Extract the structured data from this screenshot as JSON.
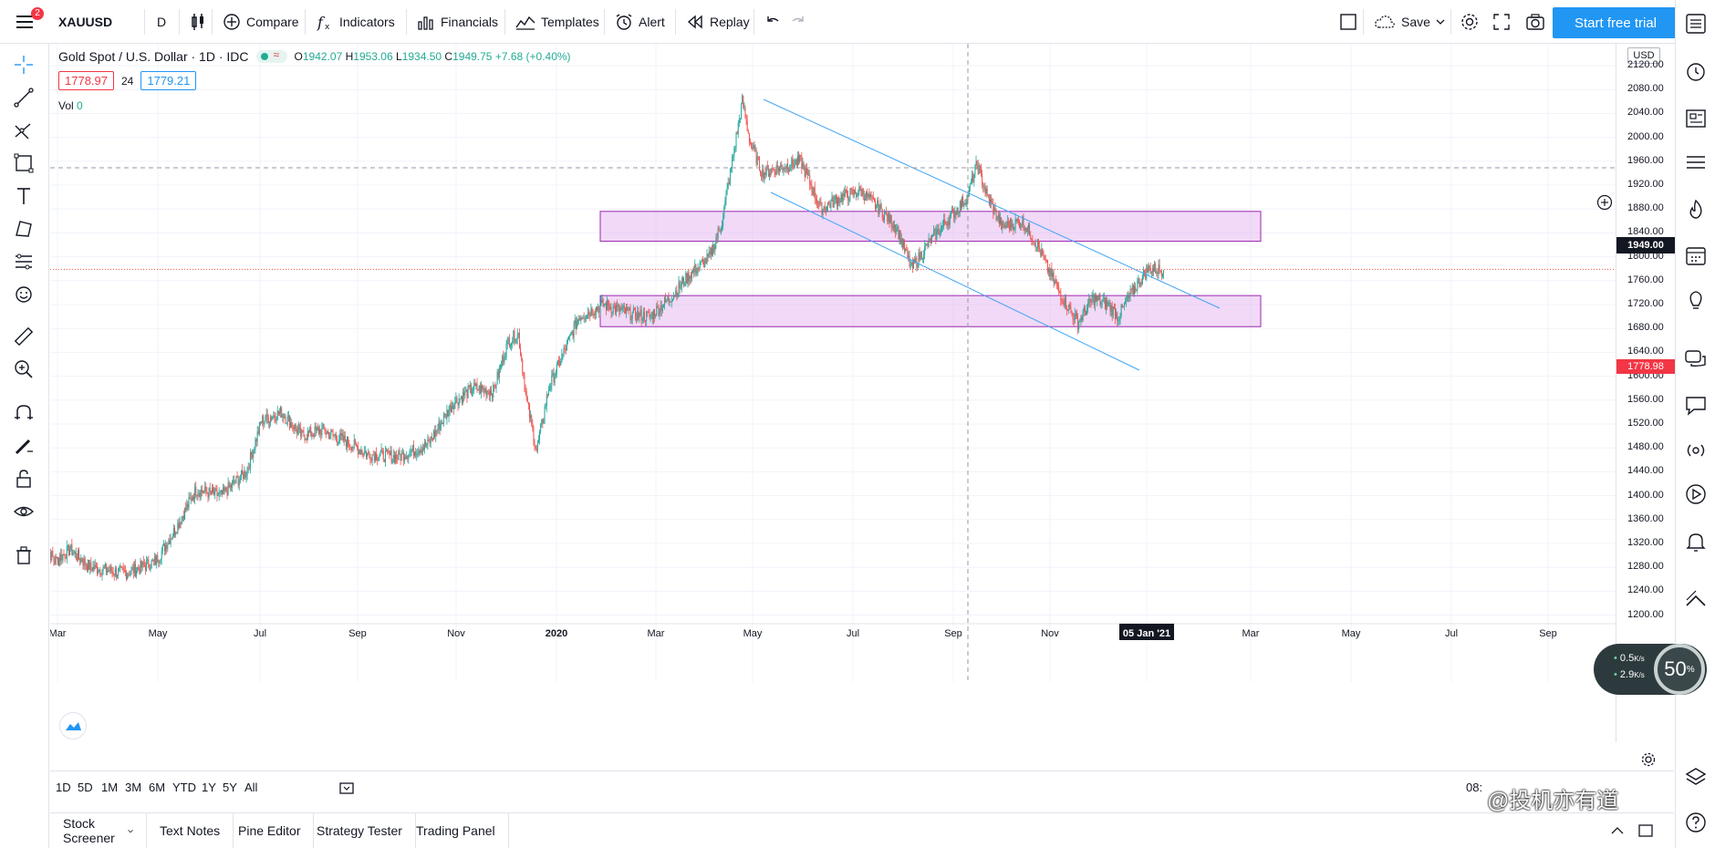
{
  "topbar": {
    "menu_badge": "2",
    "symbol": "XAUUSD",
    "interval": "D",
    "compare": "Compare",
    "indicators": "Indicators",
    "financials": "Financials",
    "templates": "Templates",
    "alert": "Alert",
    "replay": "Replay",
    "save": "Save",
    "start_trial": "Start free trial"
  },
  "legend": {
    "title": "Gold Spot / U.S. Dollar · 1D · IDC",
    "o_lbl": "O",
    "o": "1942.07",
    "h_lbl": "H",
    "h": "1953.06",
    "l_lbl": "L",
    "l": "1934.50",
    "c_lbl": "C",
    "c": "1949.75",
    "change": "+7.68 (+0.40%)",
    "sell": "1778.97",
    "spread": "24",
    "buy": "1779.21",
    "vol_label": "Vol",
    "vol_value": "0"
  },
  "price_axis": {
    "currency": "USD",
    "ticks": [
      "2120.00",
      "2080.00",
      "2040.00",
      "2000.00",
      "1960.00",
      "1920.00",
      "1880.00",
      "1840.00",
      "1800.00",
      "1760.00",
      "1720.00",
      "1680.00",
      "1640.00",
      "1600.00",
      "1560.00",
      "1520.00",
      "1480.00",
      "1440.00",
      "1400.00",
      "1360.00",
      "1320.00",
      "1280.00",
      "1240.00",
      "1200.00"
    ],
    "crosshair_price": "1949.00",
    "last_price": "1778.98"
  },
  "time_axis": {
    "ticks": [
      "Mar",
      "May",
      "Jul",
      "Sep",
      "Nov",
      "2020",
      "Mar",
      "May",
      "Jul",
      "Sep",
      "Nov",
      "05 Jan '21",
      "Mar",
      "May",
      "Jul",
      "Sep"
    ]
  },
  "range": {
    "items": [
      "1D",
      "5D",
      "1M",
      "3M",
      "6M",
      "YTD",
      "1Y",
      "5Y",
      "All"
    ],
    "clock": "08:"
  },
  "bottom_tabs": [
    "Stock Screener",
    "Text Notes",
    "Pine Editor",
    "Strategy Tester",
    "Trading Panel"
  ],
  "speed": {
    "percent": "50",
    "percent_sign": "%",
    "up": "0.5",
    "down": "2.9",
    "unit": "K/s"
  },
  "watermark": "@投机亦有道",
  "chart_data": {
    "type": "candlestick",
    "symbol": "XAUUSD",
    "y_range": [
      1180,
      2150
    ],
    "anchors": [
      {
        "t": 0,
        "p": 1320
      },
      {
        "t": 10,
        "p": 1290
      },
      {
        "t": 25,
        "p": 1310
      },
      {
        "t": 45,
        "p": 1280
      },
      {
        "t": 80,
        "p": 1270
      },
      {
        "t": 110,
        "p": 1290
      },
      {
        "t": 130,
        "p": 1345
      },
      {
        "t": 150,
        "p": 1410
      },
      {
        "t": 175,
        "p": 1400
      },
      {
        "t": 200,
        "p": 1440
      },
      {
        "t": 215,
        "p": 1525
      },
      {
        "t": 235,
        "p": 1540
      },
      {
        "t": 255,
        "p": 1500
      },
      {
        "t": 275,
        "p": 1510
      },
      {
        "t": 300,
        "p": 1490
      },
      {
        "t": 320,
        "p": 1470
      },
      {
        "t": 350,
        "p": 1465
      },
      {
        "t": 380,
        "p": 1485
      },
      {
        "t": 405,
        "p": 1555
      },
      {
        "t": 425,
        "p": 1580
      },
      {
        "t": 445,
        "p": 1575
      },
      {
        "t": 460,
        "p": 1660
      },
      {
        "t": 470,
        "p": 1670
      },
      {
        "t": 478,
        "p": 1560
      },
      {
        "t": 488,
        "p": 1475
      },
      {
        "t": 500,
        "p": 1580
      },
      {
        "t": 515,
        "p": 1640
      },
      {
        "t": 530,
        "p": 1700
      },
      {
        "t": 555,
        "p": 1720
      },
      {
        "t": 580,
        "p": 1705
      },
      {
        "t": 600,
        "p": 1700
      },
      {
        "t": 620,
        "p": 1730
      },
      {
        "t": 640,
        "p": 1770
      },
      {
        "t": 660,
        "p": 1800
      },
      {
        "t": 672,
        "p": 1860
      },
      {
        "t": 682,
        "p": 1960
      },
      {
        "t": 692,
        "p": 2060
      },
      {
        "t": 700,
        "p": 1990
      },
      {
        "t": 712,
        "p": 1940
      },
      {
        "t": 730,
        "p": 1950
      },
      {
        "t": 750,
        "p": 1960
      },
      {
        "t": 770,
        "p": 1880
      },
      {
        "t": 790,
        "p": 1900
      },
      {
        "t": 810,
        "p": 1910
      },
      {
        "t": 828,
        "p": 1880
      },
      {
        "t": 845,
        "p": 1850
      },
      {
        "t": 860,
        "p": 1780
      },
      {
        "t": 880,
        "p": 1830
      },
      {
        "t": 900,
        "p": 1870
      },
      {
        "t": 915,
        "p": 1900
      },
      {
        "t": 925,
        "p": 1955
      },
      {
        "t": 935,
        "p": 1900
      },
      {
        "t": 950,
        "p": 1850
      },
      {
        "t": 970,
        "p": 1860
      },
      {
        "t": 985,
        "p": 1820
      },
      {
        "t": 995,
        "p": 1780
      },
      {
        "t": 1010,
        "p": 1730
      },
      {
        "t": 1025,
        "p": 1690
      },
      {
        "t": 1040,
        "p": 1730
      },
      {
        "t": 1055,
        "p": 1720
      },
      {
        "t": 1065,
        "p": 1700
      },
      {
        "t": 1080,
        "p": 1745
      },
      {
        "t": 1095,
        "p": 1780
      },
      {
        "t": 1110,
        "p": 1778
      }
    ],
    "zones": [
      {
        "from_t": 560,
        "to_t": 1220,
        "low": 1826,
        "high": 1876
      },
      {
        "from_t": 560,
        "to_t": 1220,
        "low": 1683,
        "high": 1735
      }
    ],
    "channel": [
      {
        "from": [
          692,
          2068
        ],
        "to": [
          1170,
          1712
        ]
      },
      {
        "from": [
          706,
          1905
        ],
        "to": [
          1115,
          1605
        ]
      }
    ],
    "crosshair": {
      "t": 925,
      "price": 1949
    }
  }
}
